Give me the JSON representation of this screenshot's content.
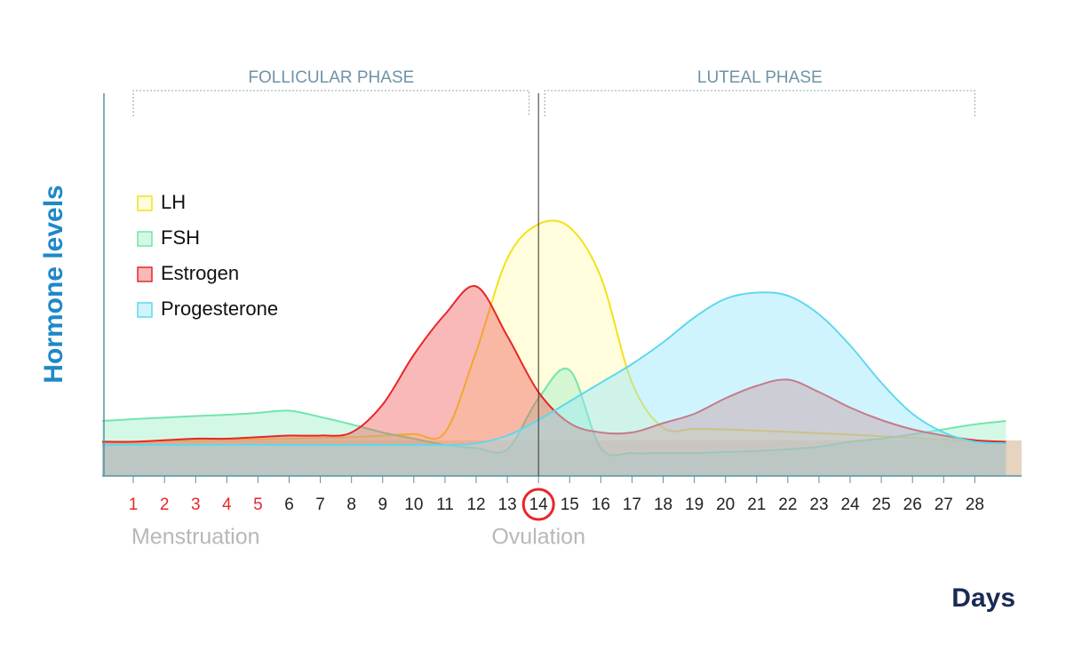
{
  "chart_data": {
    "type": "area",
    "y_label": "Hormone levels",
    "x_label": "Days",
    "x": [
      0,
      1,
      2,
      3,
      4,
      5,
      6,
      7,
      8,
      9,
      10,
      11,
      12,
      13,
      14,
      15,
      16,
      17,
      18,
      19,
      20,
      21,
      22,
      23,
      24,
      25,
      26,
      27,
      28,
      29
    ],
    "xlim": [
      0,
      29.5
    ],
    "ylim": [
      0,
      100
    ],
    "xticks": [
      1,
      2,
      3,
      4,
      5,
      6,
      7,
      8,
      9,
      10,
      11,
      12,
      13,
      14,
      15,
      16,
      17,
      18,
      19,
      20,
      21,
      22,
      23,
      24,
      25,
      26,
      27,
      28
    ],
    "highlight_days": [
      1,
      2,
      3,
      4,
      5
    ],
    "highlight_color": "#e8262a",
    "ovulation_day": 14,
    "phases": [
      {
        "label": "FOLLICULAR PHASE",
        "start": 1,
        "end": 13.7
      },
      {
        "label": "LUTEAL PHASE",
        "start": 14.2,
        "end": 28
      }
    ],
    "annotations": [
      {
        "text": "Menstruation",
        "x": 3
      },
      {
        "text": "Ovulation",
        "x": 14
      }
    ],
    "series": [
      {
        "name": "LH",
        "color": "#f2e21a",
        "fill": "rgba(255,252,190,0.55)",
        "values": [
          11,
          11,
          11.2,
          11.4,
          11.6,
          11.8,
          12,
          12.2,
          12.5,
          13,
          13.5,
          14,
          40,
          70,
          81,
          80,
          64,
          30,
          15.5,
          15.2,
          15,
          14.6,
          14.2,
          13.8,
          13.3,
          12.8,
          12.2,
          11.7,
          11.2,
          11
        ]
      },
      {
        "name": "FSH",
        "color": "#74e4ae",
        "fill": "rgba(160,240,200,0.45)",
        "values": [
          17.7,
          18.3,
          18.8,
          19.3,
          19.7,
          20.3,
          21,
          19,
          16.6,
          14,
          12,
          10,
          9,
          8.6,
          25,
          34,
          9,
          7.4,
          7.4,
          7.4,
          7.7,
          8,
          8.6,
          9.4,
          11,
          12,
          13.4,
          15,
          16.6,
          17.7
        ]
      },
      {
        "name": "Estrogen",
        "color": "#e8262a",
        "fill": "rgba(240,80,80,0.4)",
        "values": [
          11,
          11,
          11.5,
          12,
          12,
          12.5,
          13,
          13,
          14,
          23,
          39,
          52,
          61,
          45,
          27,
          17,
          14,
          14,
          17,
          20,
          25,
          29,
          31,
          27,
          22,
          18,
          15,
          13,
          11.5,
          11
        ]
      },
      {
        "name": "Progesterone",
        "color": "#5fd8ee",
        "fill": "rgba(150,230,250,0.45)",
        "values": [
          10,
          10,
          10,
          10,
          10,
          10,
          10,
          10,
          10,
          10,
          10,
          10,
          10.5,
          13,
          18,
          24,
          30,
          36,
          43,
          51,
          57,
          59,
          58,
          52,
          42,
          30,
          20,
          14,
          11,
          10.5
        ]
      }
    ]
  }
}
